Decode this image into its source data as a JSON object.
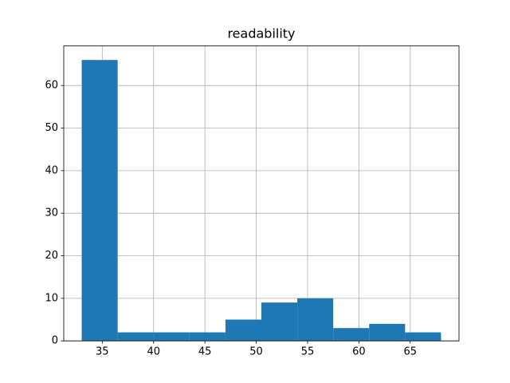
{
  "chart_data": {
    "type": "histogram",
    "title": "readability",
    "bins": [
      33,
      36.5,
      40,
      43.5,
      47,
      50.5,
      54,
      57.5,
      61,
      64.5,
      68
    ],
    "values": [
      66,
      2,
      2,
      2,
      5,
      9,
      10,
      3,
      4,
      2
    ],
    "color": "#1f77b4",
    "xlim": [
      31.25,
      69.75
    ],
    "xticks": [
      35,
      40,
      45,
      50,
      55,
      60,
      65
    ],
    "ylim": [
      0,
      69.3
    ],
    "yticks": [
      0,
      10,
      20,
      30,
      40,
      50,
      60
    ],
    "grid": true
  }
}
